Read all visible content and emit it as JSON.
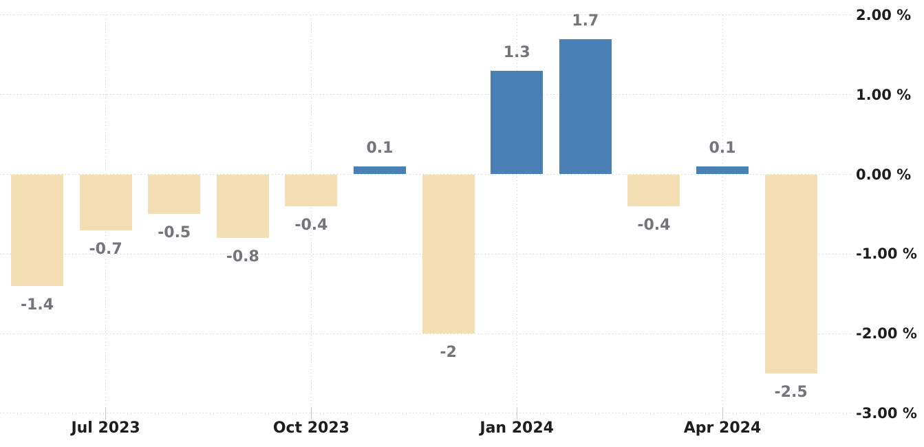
{
  "chart_data": {
    "type": "bar",
    "title": "",
    "values": [
      -1.4,
      -0.7,
      -0.5,
      -0.8,
      -0.4,
      0.1,
      -2,
      1.3,
      1.7,
      -0.4,
      0.1,
      -2.5
    ],
    "data_labels": [
      "-1.4",
      "-0.7",
      "-0.5",
      "-0.8",
      "-0.4",
      "0.1",
      "-2",
      "1.3",
      "1.7",
      "-0.4",
      "0.1",
      "-2.5"
    ],
    "x_ticks": [
      {
        "label": "Jul 2023",
        "bar_index": 1
      },
      {
        "label": "Oct 2023",
        "bar_index": 4
      },
      {
        "label": "Jan 2024",
        "bar_index": 7
      },
      {
        "label": "Apr 2024",
        "bar_index": 10
      }
    ],
    "y_tick_labels": [
      "2.00 %",
      "1.00 %",
      "0.00 %",
      "-1.00 %",
      "-2.00 %",
      "-3.00 %"
    ],
    "y_tick_values": [
      2,
      1,
      0,
      -1,
      -2,
      -3
    ],
    "ylim": [
      -3,
      2
    ],
    "unit": "%",
    "grid": "dotted",
    "legend": "none",
    "colors": {
      "positive_bar": "#4a80b4",
      "negative_bar": "#f4deb4",
      "value_label": "#74747d",
      "axis_text": "#1d1d1d",
      "gridline": "#cbcbcb",
      "tick_mark": "#c9c9c9",
      "background": "#ffffff"
    }
  }
}
